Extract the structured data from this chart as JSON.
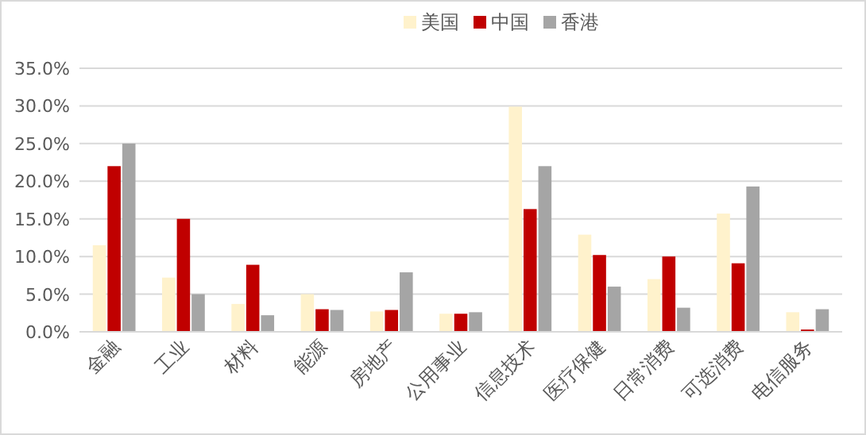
{
  "chart_data": {
    "type": "bar",
    "categories": [
      "金融",
      "工业",
      "材料",
      "能源",
      "房地产",
      "公用事业",
      "信息技术",
      "医疗保健",
      "日常消费",
      "可选消费",
      "电信服务"
    ],
    "series": [
      {
        "name": "美国",
        "color": "#fff2cc",
        "values": [
          11.5,
          7.2,
          3.7,
          5.0,
          2.7,
          2.4,
          29.9,
          12.9,
          7.0,
          15.7,
          2.6
        ]
      },
      {
        "name": "中国",
        "color": "#c00000",
        "values": [
          22.0,
          15.0,
          8.9,
          3.0,
          2.9,
          2.4,
          16.3,
          10.2,
          10.0,
          9.1,
          0.3
        ]
      },
      {
        "name": "香港",
        "color": "#a5a5a5",
        "values": [
          25.0,
          5.0,
          2.2,
          2.9,
          7.9,
          2.6,
          22.0,
          6.0,
          3.2,
          19.3,
          3.0
        ]
      }
    ],
    "ylim": [
      0,
      35
    ],
    "yticks": [
      {
        "value": 0,
        "label": "0.0%"
      },
      {
        "value": 5,
        "label": "5.0%"
      },
      {
        "value": 10,
        "label": "10.0%"
      },
      {
        "value": 15,
        "label": "15.0%"
      },
      {
        "value": 20,
        "label": "20.0%"
      },
      {
        "value": 25,
        "label": "25.0%"
      },
      {
        "value": 30,
        "label": "30.0%"
      },
      {
        "value": 35,
        "label": "35.0%"
      }
    ],
    "grid": "y",
    "legend": "top"
  }
}
